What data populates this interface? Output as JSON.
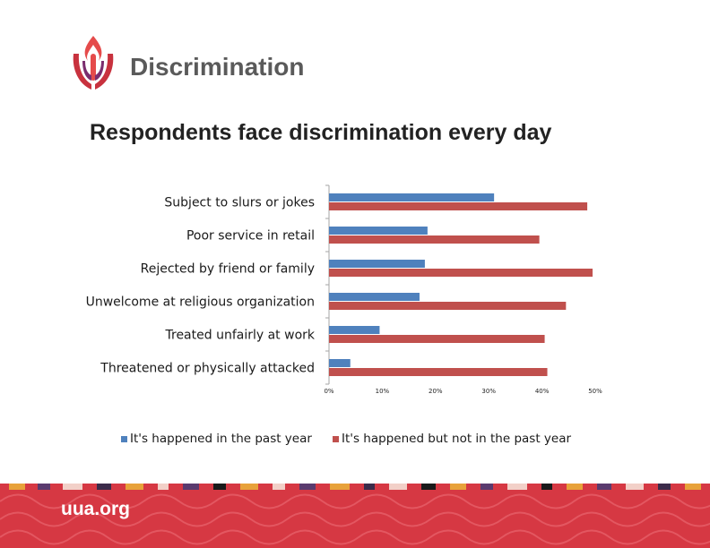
{
  "slide": {
    "title": "Discrimination",
    "subtitle": "Respondents face discrimination every day",
    "footer": "uua.org"
  },
  "colors": {
    "past_year": "#4f81bd",
    "not_past_year": "#c0504d",
    "title": "#5a5a5a",
    "footer_bg": "#d63843",
    "logo_flame": "#e54b4b",
    "logo_chalice": "#7b2d6e"
  },
  "icons": {
    "logo": "uua-chalice-logo"
  },
  "chart_data": {
    "type": "bar",
    "orientation": "horizontal",
    "title": "",
    "xlabel": "",
    "ylabel": "",
    "categories": [
      "Subject to slurs or jokes",
      "Poor service in retail",
      "Rejected by friend or family",
      "Unwelcome at religious organization",
      "Treated unfairly at work",
      "Threatened or physically attacked"
    ],
    "series": [
      {
        "name": "It's happened in the past year",
        "values": [
          31,
          18.5,
          18,
          17,
          9.5,
          4
        ]
      },
      {
        "name": "It's happened but not in the past year",
        "values": [
          48.5,
          39.5,
          49.5,
          44.5,
          40.5,
          41
        ]
      }
    ],
    "xlim": [
      0,
      50
    ],
    "x_ticks": [
      "0%",
      "10%",
      "20%",
      "30%",
      "40%",
      "50%"
    ],
    "grid": false,
    "legend": "bottom"
  }
}
